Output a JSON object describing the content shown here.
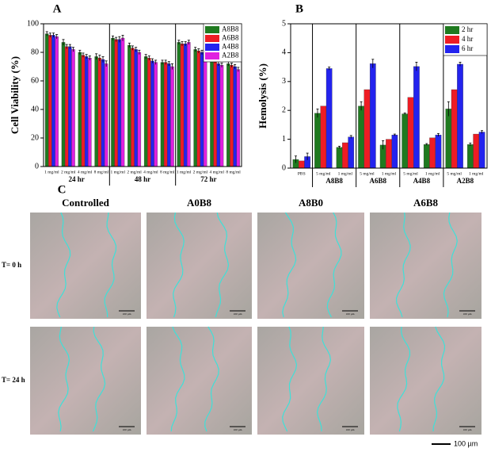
{
  "chart_data": [
    {
      "type": "bar",
      "title": "A",
      "y_label": "Cell Viability (%)",
      "categories": [
        "1 mg/ml",
        "2 mg/ml",
        "4 mg/ml",
        "8 mg/ml",
        "1 mg/ml",
        "2 mg/ml",
        "4 mg/ml",
        "8 mg/ml",
        "1 mg/ml",
        "2 mg/ml",
        "4 mg/ml",
        "8 mg/ml"
      ],
      "groups": [
        "24 hr",
        "48 hr",
        "72 hr"
      ],
      "series": [
        {
          "name": "A8B8",
          "color": "#1f7a1f",
          "values": [
            93,
            87,
            80,
            77,
            90,
            85,
            77,
            73,
            87,
            82,
            75,
            72
          ],
          "errors": [
            1.5,
            2,
            1.5,
            2,
            1.5,
            1.5,
            1.5,
            1.5,
            1.5,
            1.5,
            1.5,
            1.5
          ]
        },
        {
          "name": "A6B8",
          "color": "#ee1c24",
          "values": [
            92,
            84,
            78,
            76,
            89,
            83,
            76,
            73,
            86,
            81,
            74,
            71
          ],
          "errors": [
            1.5,
            1.5,
            1.5,
            2,
            1.5,
            1.5,
            1.5,
            1.5,
            1.5,
            1.5,
            1.5,
            1.5
          ]
        },
        {
          "name": "A4B8",
          "color": "#2323ee",
          "values": [
            92,
            84,
            77,
            75,
            89,
            82,
            74,
            72,
            86,
            80,
            72,
            70
          ],
          "errors": [
            1.5,
            1.5,
            1.5,
            2,
            2,
            1.5,
            1.5,
            1.5,
            1.5,
            1.5,
            1.5,
            1.5
          ]
        },
        {
          "name": "A2B8",
          "color": "#e020e0",
          "values": [
            91,
            82,
            76,
            72,
            90,
            80,
            73,
            70,
            87,
            78,
            71,
            68
          ],
          "errors": [
            1.5,
            1.5,
            1.5,
            2,
            2,
            1.5,
            1.5,
            2,
            1.5,
            1.5,
            1.5,
            1.5
          ]
        }
      ],
      "ylim": [
        0,
        100
      ],
      "yticks": [
        0,
        20,
        40,
        60,
        80,
        100
      ]
    },
    {
      "type": "bar",
      "title": "B",
      "y_label": "Hemolysis (%)",
      "categories": [
        "PBS",
        "5 mg/ml",
        "1 mg/ml",
        "5 mg/ml",
        "1 mg/ml",
        "5 mg/ml",
        "1 mg/ml",
        "5 mg/ml",
        "1 mg/ml"
      ],
      "groups": [
        null,
        "A8B8",
        "A6B8",
        "A4B8",
        "A2B8"
      ],
      "series": [
        {
          "name": "2 hr",
          "color": "#1f7a1f",
          "values": [
            0.3,
            1.9,
            0.72,
            2.15,
            0.8,
            1.88,
            0.82,
            2.05,
            0.82
          ],
          "errors": [
            0.12,
            0.15,
            0.04,
            0.15,
            0.15,
            0.03,
            0.03,
            0.25,
            0.05
          ]
        },
        {
          "name": "4 hr",
          "color": "#ee1c24",
          "values": [
            0.25,
            2.15,
            0.88,
            2.72,
            1.0,
            2.45,
            1.05,
            2.72,
            1.18
          ]
        },
        {
          "name": "6 hr",
          "color": "#2323ee",
          "values": [
            0.4,
            3.45,
            1.08,
            3.62,
            1.15,
            3.52,
            1.15,
            3.6,
            1.25
          ],
          "errors": [
            0.12,
            0.05,
            0.05,
            0.15,
            0.03,
            0.15,
            0.05,
            0.07,
            0.05
          ]
        }
      ],
      "ylim": [
        0,
        5
      ],
      "yticks": [
        0,
        1,
        2,
        3,
        4,
        5
      ]
    }
  ],
  "panel_c": {
    "title": "C",
    "columns": [
      "Controlled",
      "A0B8",
      "A8B0",
      "A6B8"
    ],
    "rows": [
      "T= 0 h",
      "T= 24 h"
    ],
    "scale_bar": "100 µm"
  }
}
